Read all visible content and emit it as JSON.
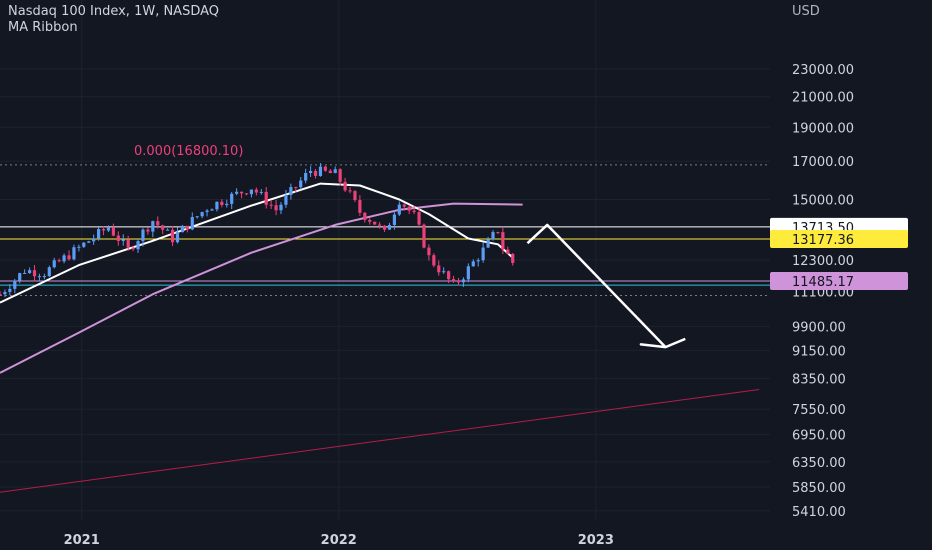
{
  "header": {
    "title": "Nasdaq 100 Index, 1W, NASDAQ",
    "indicator": "MA Ribbon",
    "currency": "USD"
  },
  "chart_data": {
    "type": "candlestick",
    "scale": "log",
    "title": "Nasdaq 100 Index, 1W, NASDAQ",
    "ylabel": "USD",
    "y_ticks": [
      23000,
      21000,
      19000,
      17000,
      15000,
      12300,
      9900,
      9150,
      8350,
      7550,
      6950,
      6350,
      5850,
      5410
    ],
    "y_tick_labels": [
      "23000.00",
      "21000.00",
      "19000.00",
      "17000.00",
      "15000.00",
      "12300.00",
      "9900.00",
      "9150.00",
      "8350.00",
      "7550.00",
      "6950.00",
      "6350.00",
      "5850.00",
      "5410.00"
    ],
    "x_tick_labels": [
      "2021",
      "2022",
      "2023"
    ],
    "x_ticks": [
      "2021-01-01",
      "2022-01-01",
      "2023-01-01"
    ],
    "ylim": [
      5250,
      27000
    ],
    "price_tags": [
      {
        "label": "13713.50",
        "value": 13713.5,
        "bg": "#ffffff",
        "fg": "#131722"
      },
      {
        "label": "13177.36",
        "value": 13177.36,
        "bg": "#ffeb3b",
        "fg": "#131722"
      },
      {
        "label": "11485.17",
        "value": 11485.17,
        "bg": "#ce93d8",
        "fg": "#131722"
      },
      {
        "label": "11100.00",
        "value": 11100,
        "bg": "#131722",
        "fg": "#d1d4dc"
      }
    ],
    "horizontal_lines": [
      {
        "value": 16800.1,
        "color": "#787b86",
        "style": "dotted"
      },
      {
        "value": 13713.5,
        "color": "#ffffff",
        "style": "solid"
      },
      {
        "value": 13177.36,
        "color": "#ffeb3b",
        "style": "solid"
      },
      {
        "value": 11485.17,
        "color": "#ce93d8",
        "style": "solid"
      },
      {
        "value": 11330,
        "color": "#26c6da",
        "style": "solid"
      },
      {
        "value": 10950,
        "color": "#787b86",
        "style": "dotted"
      }
    ],
    "annotation": {
      "text": "0.000(16800.10)",
      "value": 16800.1
    },
    "anchors": [
      [
        "2020-09-07",
        11000
      ],
      [
        "2020-10-12",
        11900
      ],
      [
        "2020-11-09",
        11800
      ],
      [
        "2020-12-28",
        12800
      ],
      [
        "2021-02-08",
        13700
      ],
      [
        "2021-03-08",
        12700
      ],
      [
        "2021-04-12",
        14000
      ],
      [
        "2021-05-10",
        13200
      ],
      [
        "2021-06-28",
        14600
      ],
      [
        "2021-08-30",
        15600
      ],
      [
        "2021-10-04",
        14500
      ],
      [
        "2021-11-22",
        16500
      ],
      [
        "2021-12-27",
        16300
      ],
      [
        "2022-01-10",
        15600
      ],
      [
        "2022-01-31",
        14400
      ],
      [
        "2022-02-21",
        13900
      ],
      [
        "2022-03-07",
        13400
      ],
      [
        "2022-03-28",
        15000
      ],
      [
        "2022-04-18",
        14200
      ],
      [
        "2022-05-09",
        12400
      ],
      [
        "2022-06-13",
        11300
      ],
      [
        "2022-06-27",
        11700
      ],
      [
        "2022-07-25",
        12700
      ],
      [
        "2022-08-15",
        13600
      ],
      [
        "2022-08-22",
        12800
      ],
      [
        "2022-09-05",
        12200
      ]
    ],
    "ma_fast": [
      [
        "2020-09-07",
        10700
      ],
      [
        "2020-12-28",
        12100
      ],
      [
        "2021-04-12",
        13100
      ],
      [
        "2021-08-30",
        14700
      ],
      [
        "2021-12-06",
        15800
      ],
      [
        "2022-01-31",
        15700
      ],
      [
        "2022-03-28",
        15000
      ],
      [
        "2022-05-09",
        14300
      ],
      [
        "2022-07-04",
        13200
      ],
      [
        "2022-08-15",
        12950
      ],
      [
        "2022-09-05",
        12400
      ]
    ],
    "ma_slow": [
      [
        "2020-09-07",
        8500
      ],
      [
        "2020-12-28",
        9700
      ],
      [
        "2021-04-12",
        11000
      ],
      [
        "2021-08-30",
        12600
      ],
      [
        "2021-12-27",
        13800
      ],
      [
        "2022-03-28",
        14500
      ],
      [
        "2022-06-13",
        14800
      ],
      [
        "2022-09-19",
        14750
      ]
    ],
    "long_ma": [
      [
        "2020-09-07",
        5750
      ],
      [
        "2023-08-21",
        8050
      ]
    ],
    "projection_arrow": [
      [
        "2022-09-26",
        13000
      ],
      [
        "2022-10-24",
        13800
      ],
      [
        "2023-04-10",
        9250
      ],
      [
        "2023-03-06",
        9330
      ],
      [
        "2023-04-10",
        9250
      ],
      [
        "2023-05-08",
        9500
      ]
    ]
  },
  "colors": {
    "background": "#131722",
    "grid": "#1e222d",
    "text": "#d1d4dc",
    "up": "#5b9cf6",
    "down": "#ec407a",
    "ma_fast": "#ffffff",
    "ma_slow": "#ce93d8",
    "long_ma": "#b71c4a",
    "annotation": "#ec407a"
  }
}
